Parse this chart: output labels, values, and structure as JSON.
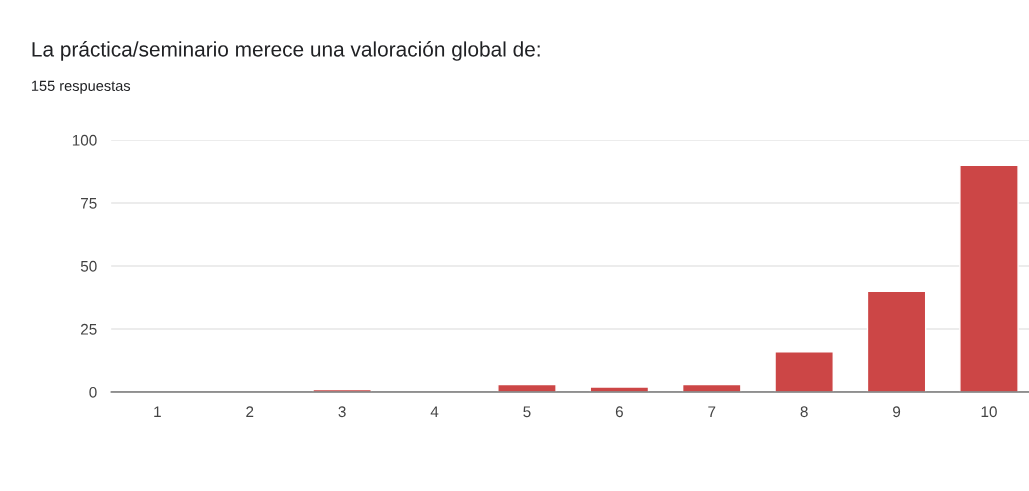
{
  "chart_data": {
    "type": "bar",
    "title": "La práctica/seminario merece una valoración global de:",
    "subtitle": "155 respuestas",
    "categories": [
      "1",
      "2",
      "3",
      "4",
      "5",
      "6",
      "7",
      "8",
      "9",
      "10"
    ],
    "values": [
      0,
      0,
      1,
      0,
      3,
      2,
      3,
      16,
      40,
      90
    ],
    "color": "#cc4646",
    "ylim": [
      0,
      100
    ],
    "yticks": [
      0,
      25,
      50,
      75,
      100
    ],
    "grid": "y",
    "legend": false
  }
}
